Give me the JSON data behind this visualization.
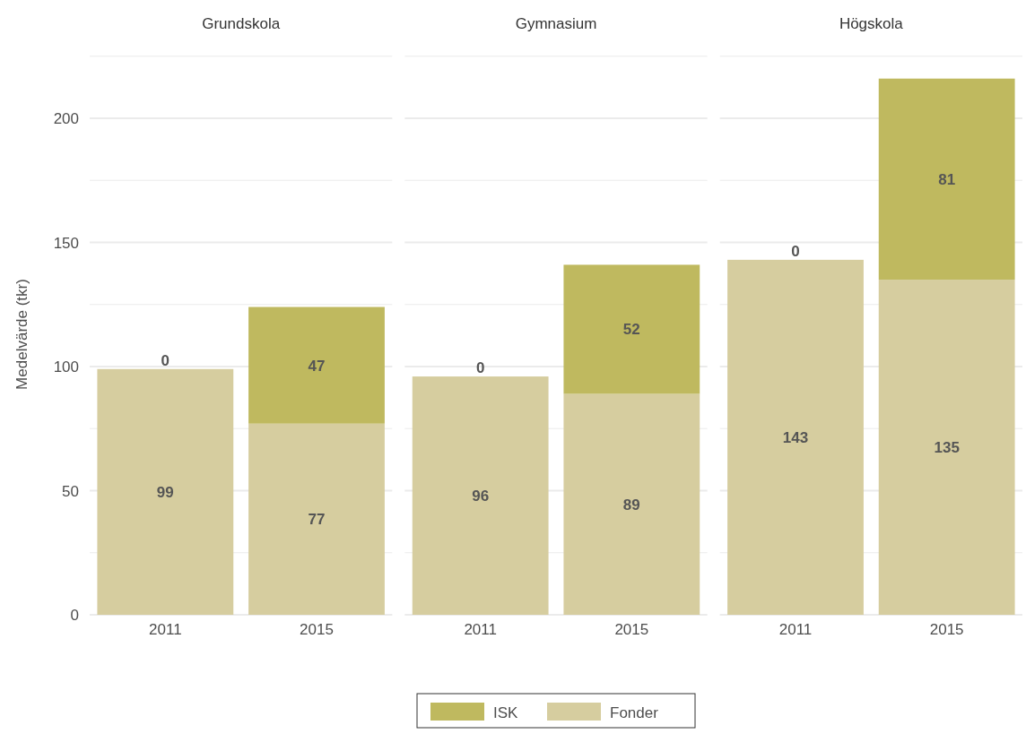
{
  "chart_data": [
    {
      "type": "bar",
      "title": "Grundskola",
      "ylabel": "Medelvärde (tkr)",
      "categories": [
        "2011",
        "2015"
      ],
      "stacked": true,
      "data_labels": true,
      "grid": true,
      "legend": "bottom",
      "ylim": [
        0,
        226
      ],
      "yticks": [
        0,
        {
          "value": 25,
          "label": null
        },
        50,
        {
          "value": 75,
          "label": null
        },
        100,
        {
          "value": 125,
          "label": null
        },
        150,
        {
          "value": 175,
          "label": null
        },
        200,
        {
          "value": 225,
          "label": null
        }
      ],
      "series": [
        {
          "name": "Fonder",
          "color": "#d6cd9f",
          "values": [
            99,
            77
          ]
        },
        {
          "name": "ISK",
          "color": "#bfb95f",
          "values": [
            0,
            47
          ]
        }
      ]
    },
    {
      "type": "bar",
      "title": "Gymnasium",
      "categories": [
        "2011",
        "2015"
      ],
      "stacked": true,
      "data_labels": true,
      "grid": true,
      "tick_labels": "x",
      "ylim": [
        0,
        226
      ],
      "yticks": [
        0,
        {
          "value": 25,
          "label": null
        },
        50,
        {
          "value": 75,
          "label": null
        },
        100,
        {
          "value": 125,
          "label": null
        },
        150,
        {
          "value": 175,
          "label": null
        },
        200,
        {
          "value": 225,
          "label": null
        }
      ],
      "series": [
        {
          "color": "#d6cd9f",
          "values": [
            96,
            89
          ]
        },
        {
          "color": "#bfb95f",
          "values": [
            0,
            52
          ]
        }
      ]
    },
    {
      "type": "bar",
      "title": "Högskola",
      "categories": [
        "2011",
        "2015"
      ],
      "stacked": true,
      "data_labels": true,
      "grid": true,
      "tick_labels": "x",
      "ylim": [
        0,
        226
      ],
      "yticks": [
        0,
        {
          "value": 25,
          "label": null
        },
        50,
        {
          "value": 75,
          "label": null
        },
        100,
        {
          "value": 125,
          "label": null
        },
        150,
        {
          "value": 175,
          "label": null
        },
        200,
        {
          "value": 225,
          "label": null
        }
      ],
      "series": [
        {
          "color": "#d6cd9f",
          "values": [
            143,
            135
          ]
        },
        {
          "color": "#bfb95f",
          "values": [
            0,
            81
          ]
        }
      ]
    }
  ]
}
